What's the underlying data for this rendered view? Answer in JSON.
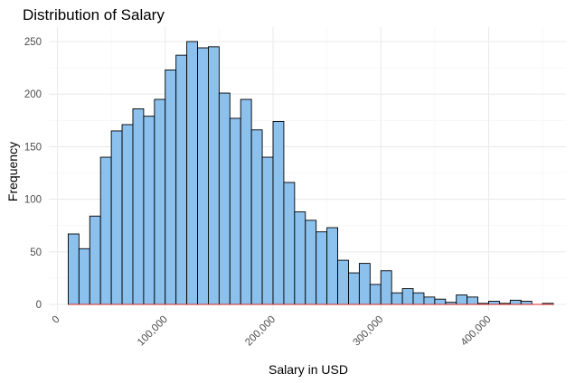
{
  "chart_data": {
    "type": "bar",
    "title": "Distribution of Salary",
    "xlabel": "Salary in USD",
    "ylabel": "Frequency",
    "xlim": [
      0,
      460000
    ],
    "ylim": [
      0,
      260
    ],
    "bin_width": 10000,
    "bins_start": 10000,
    "grid": true,
    "colors": {
      "bar_fill": "#8cc1ee",
      "bar_stroke": "#000000",
      "grid": "#ebebeb",
      "baseline": "#d9271c"
    },
    "x_ticks": [
      {
        "value": 0,
        "label": "0"
      },
      {
        "value": 100000,
        "label": "100,000"
      },
      {
        "value": 200000,
        "label": "200,000"
      },
      {
        "value": 300000,
        "label": "300,000"
      },
      {
        "value": 400000,
        "label": "400,000"
      }
    ],
    "y_ticks": [
      {
        "value": 0,
        "label": "0"
      },
      {
        "value": 50,
        "label": "50"
      },
      {
        "value": 100,
        "label": "100"
      },
      {
        "value": 150,
        "label": "150"
      },
      {
        "value": 200,
        "label": "200"
      },
      {
        "value": 250,
        "label": "250"
      }
    ],
    "values": [
      67,
      53,
      84,
      140,
      165,
      171,
      186,
      179,
      195,
      223,
      237,
      250,
      244,
      245,
      201,
      177,
      195,
      166,
      140,
      174,
      116,
      88,
      80,
      69,
      73,
      42,
      30,
      39,
      19,
      32,
      11,
      15,
      11,
      7,
      5,
      2,
      9,
      7,
      1,
      3,
      1,
      4,
      3,
      0,
      1
    ]
  }
}
